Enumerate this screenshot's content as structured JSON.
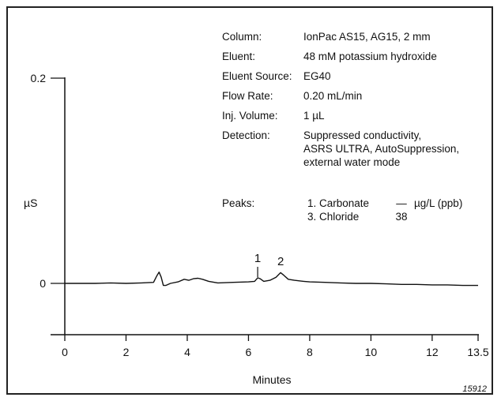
{
  "chart_data": {
    "type": "line",
    "xlabel": "Minutes",
    "ylabel": "µS",
    "xlim": [
      0,
      13.5
    ],
    "ylim": [
      -0.05,
      0.2
    ],
    "x_ticks": [
      "0",
      "2",
      "4",
      "6",
      "8",
      "10",
      "12",
      "13.5"
    ],
    "y_ticks": [
      "0",
      "0.2"
    ],
    "series": [
      {
        "x": [
          0,
          0.5,
          1,
          1.5,
          2,
          2.5,
          2.9,
          3.0,
          3.08,
          3.15,
          3.22,
          3.3,
          3.45,
          3.7,
          3.9,
          4.05,
          4.2,
          4.35,
          4.5,
          4.7,
          5.0,
          5.5,
          6.0,
          6.2,
          6.3,
          6.38,
          6.5,
          6.7,
          6.9,
          7.05,
          7.15,
          7.3,
          7.5,
          7.8,
          8.0,
          8.5,
          9.0,
          9.5,
          10.0,
          10.5,
          11.0,
          11.5,
          12.0,
          12.5,
          13.0,
          13.5
        ],
        "y": [
          0.0,
          0.0,
          0.0,
          0.0005,
          0.0,
          0.0005,
          0.001,
          0.007,
          0.011,
          0.006,
          -0.002,
          -0.002,
          0.0,
          0.0015,
          0.004,
          0.003,
          0.0045,
          0.005,
          0.004,
          0.002,
          0.0005,
          0.001,
          0.0015,
          0.002,
          0.0055,
          0.0045,
          0.002,
          0.003,
          0.006,
          0.0105,
          0.008,
          0.004,
          0.003,
          0.002,
          0.0015,
          0.001,
          0.0005,
          0.0,
          0.0,
          -0.0005,
          -0.001,
          -0.001,
          -0.0015,
          -0.0015,
          -0.002,
          -0.002
        ]
      }
    ],
    "peaks": [
      {
        "number": "1",
        "x": 6.3
      },
      {
        "number": "2",
        "x": 7.05
      }
    ]
  },
  "conditions": [
    {
      "label": "Column:",
      "value": [
        "IonPac AS15, AG15, 2 mm"
      ]
    },
    {
      "label": "Eluent:",
      "value": [
        "48 mM potassium hydroxide"
      ]
    },
    {
      "label": "Eluent Source:",
      "value": [
        "EG40"
      ]
    },
    {
      "label": "Flow Rate:",
      "value": [
        "0.20 mL/min"
      ]
    },
    {
      "label": "Inj. Volume:",
      "value": [
        "1 µL"
      ]
    },
    {
      "label": "Detection:",
      "value": [
        "Suppressed conductivity,",
        "ASRS ULTRA, AutoSuppression,",
        "external water mode"
      ]
    }
  ],
  "peaks_table": {
    "label": "Peaks:",
    "rows": [
      {
        "name": "1. Carbonate",
        "amount": "—",
        "unit": "µg/L (ppb)"
      },
      {
        "name": "3. Chloride",
        "amount": "38",
        "unit": ""
      }
    ]
  },
  "figure_id": "15912"
}
